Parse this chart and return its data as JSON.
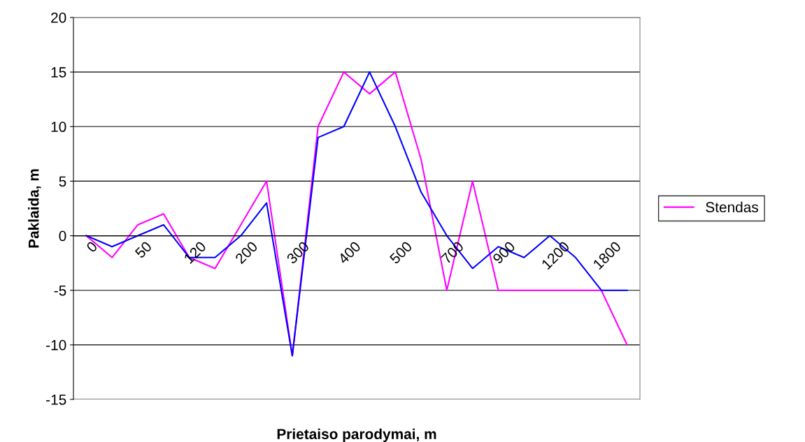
{
  "chart_data": {
    "type": "line",
    "xlabel": "Prietaiso parodymai, m",
    "ylabel": "Paklaida, m",
    "categories": [
      "0",
      null,
      "50",
      null,
      "120",
      null,
      "200",
      null,
      "300",
      null,
      "400",
      null,
      "500",
      null,
      "700",
      null,
      "900",
      null,
      "1200",
      null,
      "1800",
      null
    ],
    "series": [
      {
        "name": "Stendas",
        "color": "#ff00ff",
        "values": [
          0,
          -2,
          1,
          2,
          -2,
          -3,
          1,
          5,
          -11,
          10,
          15,
          13,
          15,
          7,
          -5,
          5,
          -5,
          -5,
          -5,
          -5,
          -5,
          -10
        ]
      },
      {
        "color": "#0000ff",
        "values": [
          0,
          -1,
          0,
          1,
          -2,
          -2,
          0,
          3,
          -11,
          9,
          10,
          15,
          10,
          4,
          0,
          -3,
          -1,
          -2,
          0,
          -2,
          -5,
          -5
        ]
      }
    ],
    "ylim": [
      -15,
      20
    ],
    "yticks": [
      -15,
      -10,
      -5,
      0,
      5,
      10,
      15,
      20
    ],
    "grid": "y",
    "legend": "right",
    "marker": "none",
    "line_style": "solid"
  }
}
